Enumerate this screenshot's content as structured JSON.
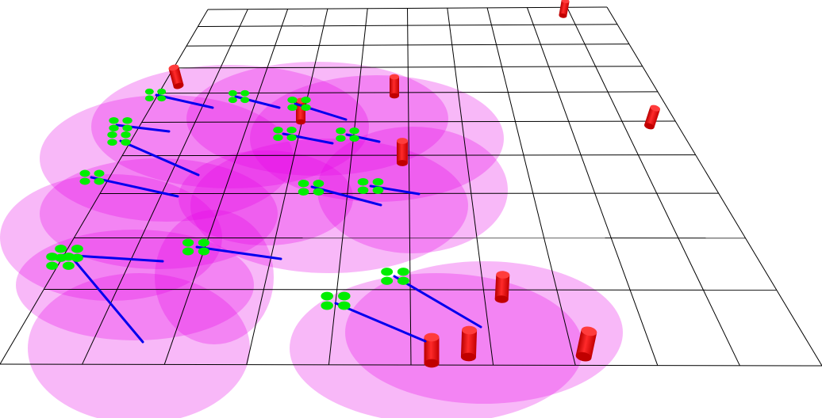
{
  "scene": {
    "colors": {
      "background": "#ffffff",
      "grid_line": "#000000",
      "coverage_zone": "#e600e6",
      "drone_rotor": "#00ee00",
      "heading_line": "#0000ee",
      "target_pillar": "#ff0000"
    }
  }
}
